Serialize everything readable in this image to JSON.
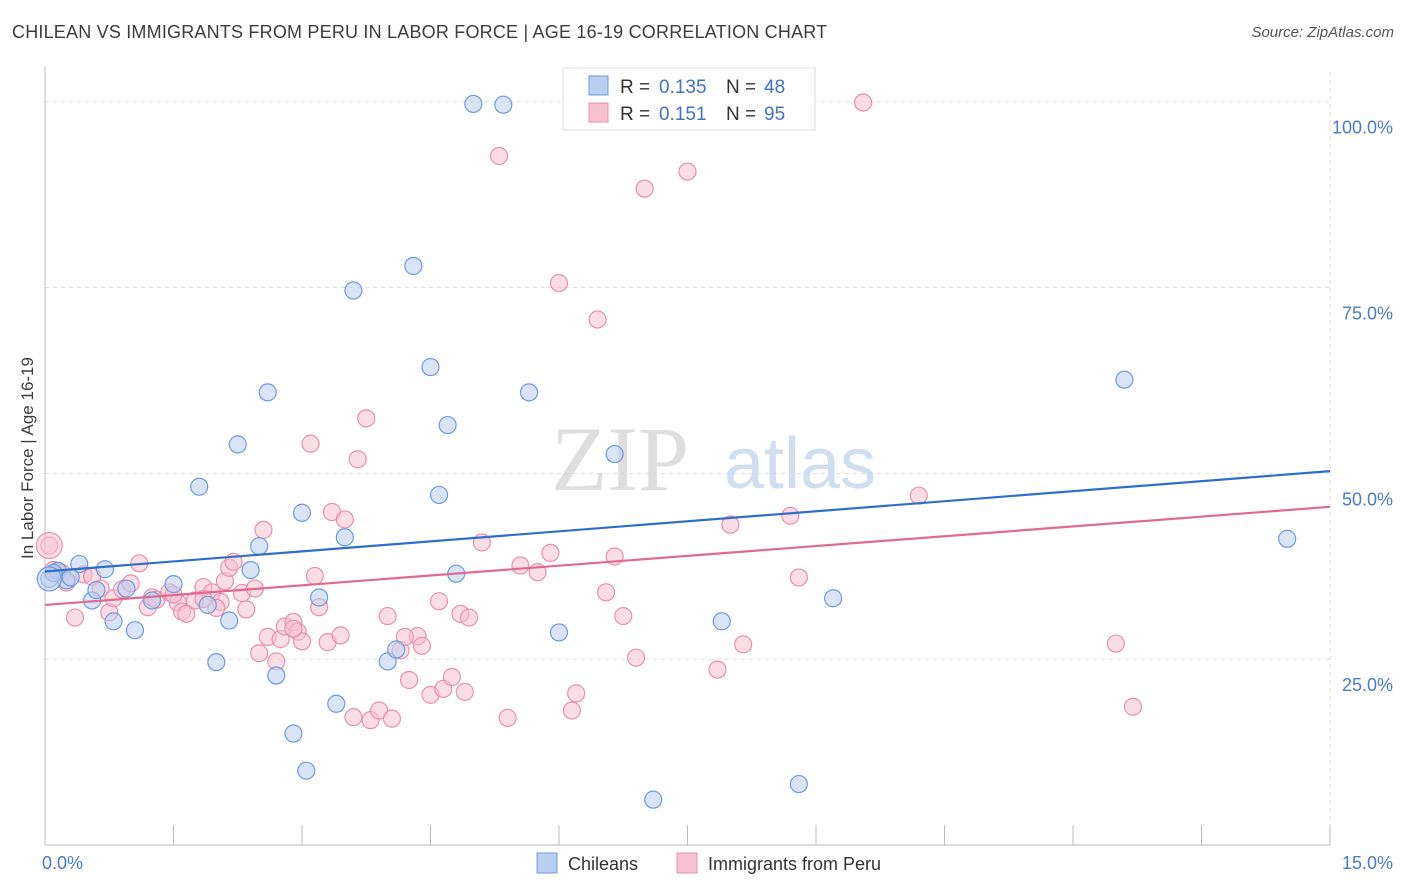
{
  "title": "CHILEAN VS IMMIGRANTS FROM PERU IN LABOR FORCE | AGE 16-19 CORRELATION CHART",
  "source": "Source: ZipAtlas.com",
  "watermark": {
    "zip": "ZIP",
    "atlas": "atlas"
  },
  "colors": {
    "blue_fill": "#b9d0f0",
    "blue_stroke": "#6d9be0",
    "blue_line": "#2f6fcc",
    "pink_fill": "#f7c1d2",
    "pink_stroke": "#e890ad",
    "pink_line": "#e06a93",
    "tick_text": "#4a7cc9",
    "grid": "#dddddd"
  },
  "chart_data": {
    "type": "scatter",
    "title": "CHILEAN VS IMMIGRANTS FROM PERU IN LABOR FORCE | AGE 16-19 CORRELATION CHART",
    "xlabel": "",
    "ylabel": "In Labor Force | Age 16-19",
    "xlim": [
      0,
      15
    ],
    "ylim": [
      0,
      104
    ],
    "x_tick_labels": [
      {
        "value": 0,
        "label": "0.0%"
      },
      {
        "value": 15,
        "label": "15.0%"
      }
    ],
    "y_tick_labels": [
      {
        "value": 25,
        "label": "25.0%"
      },
      {
        "value": 50,
        "label": "50.0%"
      },
      {
        "value": 75,
        "label": "75.0%"
      },
      {
        "value": 100,
        "label": "100.0%"
      }
    ],
    "grid": true,
    "legend_position": "top-center",
    "legend": [
      {
        "r_label": "R =",
        "r_value": "0.135",
        "n_label": "N =",
        "n_value": "48"
      },
      {
        "r_label": "R =",
        "r_value": "0.151",
        "n_label": "N =",
        "n_value": "95"
      }
    ],
    "series": [
      {
        "name": "Chileans",
        "color": "#b9d0f0",
        "trend": {
          "x": [
            0,
            15
          ],
          "y": [
            36.8,
            50.3
          ]
        },
        "points": [
          [
            0.05,
            35.8
          ],
          [
            0.15,
            36.9
          ],
          [
            0.25,
            35.6
          ],
          [
            0.4,
            37.8
          ],
          [
            0.55,
            32.9
          ],
          [
            0.6,
            34.3
          ],
          [
            0.7,
            37.1
          ],
          [
            0.8,
            30.1
          ],
          [
            0.95,
            34.5
          ],
          [
            1.05,
            28.9
          ],
          [
            1.25,
            32.9
          ],
          [
            1.5,
            35.1
          ],
          [
            1.8,
            48.2
          ],
          [
            1.9,
            32.3
          ],
          [
            2.0,
            24.6
          ],
          [
            2.15,
            30.2
          ],
          [
            2.25,
            53.9
          ],
          [
            2.4,
            37.0
          ],
          [
            2.5,
            40.2
          ],
          [
            2.6,
            60.9
          ],
          [
            2.7,
            22.8
          ],
          [
            2.9,
            15.0
          ],
          [
            3.0,
            44.7
          ],
          [
            3.05,
            10.0
          ],
          [
            3.2,
            33.3
          ],
          [
            3.4,
            19.0
          ],
          [
            3.5,
            41.4
          ],
          [
            3.6,
            74.6
          ],
          [
            4.0,
            24.7
          ],
          [
            4.1,
            26.3
          ],
          [
            4.3,
            77.9
          ],
          [
            4.5,
            64.3
          ],
          [
            4.6,
            47.1
          ],
          [
            4.7,
            56.5
          ],
          [
            4.8,
            36.5
          ],
          [
            5.0,
            99.7
          ],
          [
            5.35,
            99.6
          ],
          [
            5.65,
            60.9
          ],
          [
            6.0,
            28.6
          ],
          [
            6.65,
            52.6
          ],
          [
            7.1,
            6.1
          ],
          [
            7.9,
            30.1
          ],
          [
            8.8,
            8.2
          ],
          [
            9.2,
            33.2
          ],
          [
            12.6,
            62.6
          ],
          [
            14.5,
            41.2
          ],
          [
            0.1,
            36.6
          ],
          [
            0.3,
            36.0
          ]
        ]
      },
      {
        "name": "Immigrants from Peru",
        "color": "#f7c1d2",
        "trend": {
          "x": [
            0,
            15
          ],
          "y": [
            32.3,
            45.5
          ]
        },
        "points": [
          [
            0.05,
            40.3
          ],
          [
            0.1,
            37.0
          ],
          [
            0.2,
            36.6
          ],
          [
            0.25,
            35.3
          ],
          [
            0.35,
            30.6
          ],
          [
            0.45,
            36.4
          ],
          [
            0.55,
            36.1
          ],
          [
            0.65,
            34.5
          ],
          [
            0.75,
            31.3
          ],
          [
            0.8,
            33.2
          ],
          [
            0.9,
            34.4
          ],
          [
            1.0,
            35.2
          ],
          [
            1.1,
            37.9
          ],
          [
            1.2,
            32.0
          ],
          [
            1.25,
            33.3
          ],
          [
            1.3,
            33.0
          ],
          [
            1.45,
            34.0
          ],
          [
            1.55,
            32.6
          ],
          [
            1.6,
            31.4
          ],
          [
            1.65,
            31.1
          ],
          [
            1.75,
            32.9
          ],
          [
            1.85,
            34.7
          ],
          [
            1.95,
            34.0
          ],
          [
            2.05,
            32.7
          ],
          [
            2.1,
            35.5
          ],
          [
            2.15,
            37.3
          ],
          [
            2.2,
            38.1
          ],
          [
            2.3,
            33.9
          ],
          [
            2.35,
            31.7
          ],
          [
            2.45,
            34.5
          ],
          [
            2.5,
            25.8
          ],
          [
            2.55,
            42.4
          ],
          [
            2.6,
            28.0
          ],
          [
            2.7,
            24.7
          ],
          [
            2.75,
            27.7
          ],
          [
            2.8,
            29.4
          ],
          [
            2.9,
            30.0
          ],
          [
            2.95,
            28.7
          ],
          [
            3.0,
            27.4
          ],
          [
            3.1,
            54.0
          ],
          [
            3.15,
            36.2
          ],
          [
            3.2,
            32.0
          ],
          [
            3.3,
            27.3
          ],
          [
            3.35,
            44.8
          ],
          [
            3.45,
            28.2
          ],
          [
            3.5,
            43.8
          ],
          [
            3.6,
            17.2
          ],
          [
            3.65,
            51.9
          ],
          [
            3.75,
            57.4
          ],
          [
            3.8,
            16.8
          ],
          [
            3.9,
            18.1
          ],
          [
            4.0,
            30.8
          ],
          [
            4.05,
            17.0
          ],
          [
            4.15,
            26.2
          ],
          [
            4.25,
            22.2
          ],
          [
            4.35,
            28.1
          ],
          [
            4.4,
            26.8
          ],
          [
            4.5,
            20.2
          ],
          [
            4.6,
            32.8
          ],
          [
            4.65,
            21.0
          ],
          [
            4.75,
            22.6
          ],
          [
            4.85,
            31.1
          ],
          [
            4.9,
            20.6
          ],
          [
            4.95,
            30.6
          ],
          [
            5.1,
            40.7
          ],
          [
            5.3,
            92.7
          ],
          [
            5.4,
            17.1
          ],
          [
            5.55,
            37.6
          ],
          [
            5.75,
            36.7
          ],
          [
            5.9,
            39.3
          ],
          [
            6.0,
            75.6
          ],
          [
            6.15,
            18.1
          ],
          [
            6.2,
            20.4
          ],
          [
            6.45,
            70.7
          ],
          [
            6.55,
            34.0
          ],
          [
            6.65,
            38.8
          ],
          [
            6.75,
            30.8
          ],
          [
            6.9,
            25.2
          ],
          [
            7.0,
            88.3
          ],
          [
            7.5,
            90.6
          ],
          [
            7.85,
            23.6
          ],
          [
            8.0,
            43.1
          ],
          [
            8.15,
            27.0
          ],
          [
            8.7,
            44.3
          ],
          [
            8.8,
            36.0
          ],
          [
            9.55,
            99.9
          ],
          [
            10.2,
            47.0
          ],
          [
            12.5,
            27.1
          ],
          [
            12.7,
            18.6
          ],
          [
            0.15,
            36.8
          ],
          [
            1.5,
            33.7
          ],
          [
            2.0,
            31.9
          ],
          [
            2.9,
            29.1
          ],
          [
            1.85,
            33.1
          ],
          [
            4.2,
            28.0
          ]
        ]
      }
    ]
  }
}
